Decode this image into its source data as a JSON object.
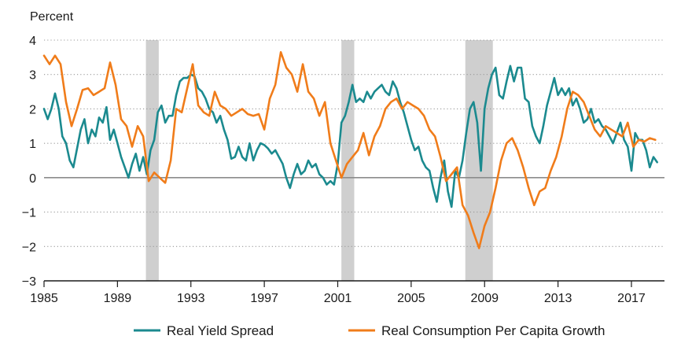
{
  "chart_data": {
    "type": "line",
    "ylabel": "Percent",
    "xlim": [
      1985,
      2018.8
    ],
    "ylim": [
      -3,
      4
    ],
    "x_ticks": [
      1985,
      1989,
      1993,
      1997,
      2001,
      2005,
      2009,
      2013,
      2017
    ],
    "x_tick_labels": [
      "1985",
      "1989",
      "1993",
      "1997",
      "2001",
      "2005",
      "2009",
      "2013",
      "2017"
    ],
    "y_ticks": [
      -3,
      -2,
      -1,
      0,
      1,
      2,
      3,
      4
    ],
    "y_tick_labels": [
      "−3",
      "−2",
      "−1",
      "0",
      "1",
      "2",
      "3",
      "4"
    ],
    "grid": "horizontal-dotted",
    "zero_line": true,
    "recessions": [
      {
        "start": 1990.55,
        "end": 1991.25
      },
      {
        "start": 2001.2,
        "end": 2001.9
      },
      {
        "start": 2007.95,
        "end": 2009.45
      }
    ],
    "colors": {
      "spread": "#1b8a8f",
      "consumption": "#f07c1a",
      "recession": "#cfcfcf",
      "grid": "#9a9a9a",
      "zero": "#8c8c8c"
    },
    "series": [
      {
        "name": "Real Yield Spread",
        "key": "spread",
        "x": [
          1985.0,
          1985.2,
          1985.4,
          1985.6,
          1985.8,
          1986.0,
          1986.2,
          1986.4,
          1986.6,
          1986.8,
          1987.0,
          1987.2,
          1987.4,
          1987.6,
          1987.8,
          1988.0,
          1988.2,
          1988.4,
          1988.6,
          1988.8,
          1989.0,
          1989.2,
          1989.4,
          1989.6,
          1989.8,
          1990.0,
          1990.2,
          1990.4,
          1990.6,
          1990.8,
          1991.0,
          1991.2,
          1991.4,
          1991.6,
          1991.8,
          1992.0,
          1992.2,
          1992.4,
          1992.6,
          1992.8,
          1993.0,
          1993.2,
          1993.4,
          1993.6,
          1993.8,
          1994.0,
          1994.2,
          1994.4,
          1994.6,
          1994.8,
          1995.0,
          1995.2,
          1995.4,
          1995.6,
          1995.8,
          1996.0,
          1996.2,
          1996.4,
          1996.6,
          1996.8,
          1997.0,
          1997.2,
          1997.4,
          1997.6,
          1997.8,
          1998.0,
          1998.2,
          1998.4,
          1998.6,
          1998.8,
          1999.0,
          1999.2,
          1999.4,
          1999.6,
          1999.8,
          2000.0,
          2000.2,
          2000.4,
          2000.6,
          2000.8,
          2001.0,
          2001.2,
          2001.4,
          2001.6,
          2001.8,
          2002.0,
          2002.2,
          2002.4,
          2002.6,
          2002.8,
          2003.0,
          2003.2,
          2003.4,
          2003.6,
          2003.8,
          2004.0,
          2004.2,
          2004.4,
          2004.6,
          2004.8,
          2005.0,
          2005.2,
          2005.4,
          2005.6,
          2005.8,
          2006.0,
          2006.2,
          2006.4,
          2006.6,
          2006.8,
          2007.0,
          2007.2,
          2007.4,
          2007.6,
          2007.8,
          2008.0,
          2008.2,
          2008.4,
          2008.6,
          2008.8,
          2009.0,
          2009.2,
          2009.4,
          2009.6,
          2009.8,
          2010.0,
          2010.2,
          2010.4,
          2010.6,
          2010.8,
          2011.0,
          2011.2,
          2011.4,
          2011.6,
          2011.8,
          2012.0,
          2012.2,
          2012.4,
          2012.6,
          2012.8,
          2013.0,
          2013.2,
          2013.4,
          2013.6,
          2013.8,
          2014.0,
          2014.2,
          2014.4,
          2014.6,
          2014.8,
          2015.0,
          2015.2,
          2015.4,
          2015.6,
          2015.8,
          2016.0,
          2016.2,
          2016.4,
          2016.6,
          2016.8,
          2017.0,
          2017.2,
          2017.4,
          2017.6,
          2017.8,
          2018.0,
          2018.2,
          2018.4
        ],
        "values": [
          2.0,
          1.7,
          2.0,
          2.45,
          2.0,
          1.2,
          1.0,
          0.5,
          0.3,
          0.85,
          1.4,
          1.7,
          1.0,
          1.4,
          1.2,
          1.75,
          1.6,
          2.05,
          1.1,
          1.4,
          1.0,
          0.6,
          0.3,
          0.0,
          0.4,
          0.7,
          0.2,
          0.6,
          0.1,
          0.8,
          1.1,
          1.9,
          2.1,
          1.6,
          1.8,
          1.8,
          2.4,
          2.8,
          2.9,
          2.9,
          3.0,
          2.95,
          2.6,
          2.5,
          2.3,
          2.0,
          1.9,
          1.6,
          1.8,
          1.4,
          1.1,
          0.55,
          0.6,
          0.9,
          0.6,
          0.5,
          1.0,
          0.5,
          0.8,
          1.0,
          0.95,
          0.85,
          0.7,
          0.8,
          0.6,
          0.4,
          0.0,
          -0.3,
          0.1,
          0.4,
          0.1,
          0.2,
          0.5,
          0.3,
          0.4,
          0.1,
          0.0,
          -0.2,
          -0.1,
          -0.2,
          0.4,
          1.6,
          1.8,
          2.2,
          2.7,
          2.2,
          2.3,
          2.2,
          2.5,
          2.3,
          2.5,
          2.6,
          2.7,
          2.5,
          2.4,
          2.8,
          2.6,
          2.2,
          1.9,
          1.5,
          1.1,
          0.8,
          0.9,
          0.5,
          0.3,
          0.2,
          -0.3,
          -0.7,
          0.0,
          0.5,
          -0.4,
          -0.85,
          0.2,
          0.0,
          0.5,
          1.3,
          2.0,
          2.2,
          1.6,
          0.2,
          2.0,
          2.6,
          3.0,
          3.2,
          2.4,
          2.3,
          2.8,
          3.25,
          2.8,
          3.2,
          3.2,
          2.3,
          2.2,
          1.5,
          1.2,
          1.0,
          1.5,
          2.1,
          2.5,
          2.9,
          2.4,
          2.6,
          2.4,
          2.6,
          2.1,
          2.3,
          2.0,
          1.6,
          1.7,
          2.0,
          1.6,
          1.7,
          1.5,
          1.4,
          1.2,
          1.0,
          1.3,
          1.6,
          1.1,
          0.9,
          0.2,
          1.3,
          1.1,
          1.1,
          0.8,
          0.3,
          0.6,
          0.45
        ]
      },
      {
        "name": "Real Consumption Per Capita Growth",
        "key": "consumption",
        "x": [
          1985.0,
          1985.3,
          1985.6,
          1985.9,
          1986.2,
          1986.5,
          1986.8,
          1987.1,
          1987.4,
          1987.7,
          1988.0,
          1988.3,
          1988.6,
          1988.9,
          1989.2,
          1989.5,
          1989.8,
          1990.1,
          1990.4,
          1990.7,
          1991.0,
          1991.3,
          1991.6,
          1991.9,
          1992.2,
          1992.5,
          1992.8,
          1993.1,
          1993.4,
          1993.7,
          1994.0,
          1994.3,
          1994.6,
          1994.9,
          1995.2,
          1995.5,
          1995.8,
          1996.1,
          1996.4,
          1996.7,
          1997.0,
          1997.3,
          1997.6,
          1997.9,
          1998.2,
          1998.5,
          1998.8,
          1999.1,
          1999.4,
          1999.7,
          2000.0,
          2000.3,
          2000.6,
          2000.9,
          2001.2,
          2001.5,
          2001.8,
          2002.1,
          2002.4,
          2002.7,
          2003.0,
          2003.3,
          2003.6,
          2003.9,
          2004.2,
          2004.5,
          2004.8,
          2005.1,
          2005.4,
          2005.7,
          2006.0,
          2006.3,
          2006.6,
          2006.9,
          2007.2,
          2007.5,
          2007.8,
          2008.1,
          2008.4,
          2008.7,
          2009.0,
          2009.3,
          2009.6,
          2009.9,
          2010.2,
          2010.5,
          2010.8,
          2011.1,
          2011.4,
          2011.7,
          2012.0,
          2012.3,
          2012.6,
          2012.9,
          2013.2,
          2013.5,
          2013.8,
          2014.1,
          2014.4,
          2014.7,
          2015.0,
          2015.3,
          2015.6,
          2015.9,
          2016.2,
          2016.5,
          2016.8,
          2017.1,
          2017.4,
          2017.7,
          2018.0,
          2018.3
        ],
        "values": [
          3.55,
          3.3,
          3.55,
          3.3,
          2.2,
          1.5,
          2.0,
          2.55,
          2.6,
          2.4,
          2.5,
          2.6,
          3.35,
          2.7,
          1.7,
          1.5,
          0.9,
          1.5,
          1.2,
          -0.1,
          0.15,
          0.0,
          -0.15,
          0.5,
          2.0,
          1.9,
          2.6,
          3.3,
          2.1,
          1.9,
          1.8,
          2.5,
          2.1,
          2.0,
          1.8,
          1.9,
          2.0,
          1.85,
          1.8,
          1.85,
          1.4,
          2.3,
          2.7,
          3.65,
          3.2,
          3.0,
          2.5,
          3.3,
          2.5,
          2.3,
          1.8,
          2.2,
          1.0,
          0.5,
          0.0,
          0.4,
          0.6,
          0.8,
          1.3,
          0.65,
          1.2,
          1.5,
          2.0,
          2.2,
          2.3,
          2.0,
          2.2,
          2.1,
          2.0,
          1.8,
          1.4,
          1.2,
          0.6,
          -0.1,
          0.1,
          0.3,
          -0.8,
          -1.1,
          -1.6,
          -2.05,
          -1.4,
          -1.0,
          -0.3,
          0.5,
          1.0,
          1.15,
          0.8,
          0.3,
          -0.3,
          -0.8,
          -0.4,
          -0.3,
          0.2,
          0.6,
          1.2,
          2.0,
          2.5,
          2.4,
          2.2,
          1.8,
          1.4,
          1.2,
          1.5,
          1.4,
          1.3,
          1.2,
          1.6,
          0.9,
          1.1,
          1.05,
          1.15,
          1.1
        ]
      }
    ],
    "legend": [
      {
        "label": "Real Yield Spread",
        "key": "spread"
      },
      {
        "label": "Real Consumption Per Capita Growth",
        "key": "consumption"
      }
    ],
    "legend_position": "bottom"
  }
}
